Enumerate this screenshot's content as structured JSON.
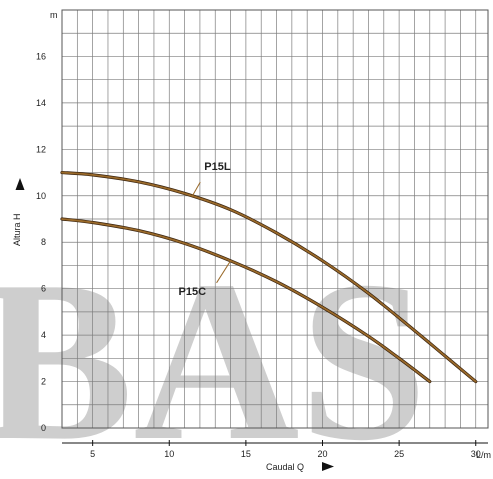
{
  "chart_data": {
    "type": "line",
    "title": "",
    "xlabel": "Caudal  Q",
    "ylabel": "Altura  H",
    "x_unit": "L/m",
    "y_unit": "m",
    "xlim": [
      3,
      30.8
    ],
    "ylim": [
      0,
      18
    ],
    "x_ticks": [
      5,
      10,
      15,
      20,
      25,
      30
    ],
    "y_ticks": [
      0,
      2,
      4,
      6,
      8,
      10,
      12,
      14,
      16
    ],
    "grid": true,
    "legend": "none",
    "series": [
      {
        "name": "P15L",
        "x": [
          3,
          5,
          8,
          11,
          14,
          17,
          20,
          23,
          26,
          28,
          30
        ],
        "y": [
          11.0,
          10.9,
          10.6,
          10.1,
          9.4,
          8.4,
          7.2,
          5.8,
          4.2,
          3.1,
          2.0
        ]
      },
      {
        "name": "P15C",
        "x": [
          3,
          5,
          8,
          11,
          14,
          17,
          20,
          23,
          25,
          27
        ],
        "y": [
          9.0,
          8.85,
          8.5,
          7.95,
          7.2,
          6.3,
          5.2,
          3.95,
          3.0,
          2.0
        ]
      }
    ],
    "annotations": [
      "P15L",
      "P15C"
    ],
    "colors": {
      "curve": "#9a6a2a",
      "grid": "#7d7d7d",
      "watermark": "#7b8fe6"
    },
    "watermark": "BAS"
  }
}
